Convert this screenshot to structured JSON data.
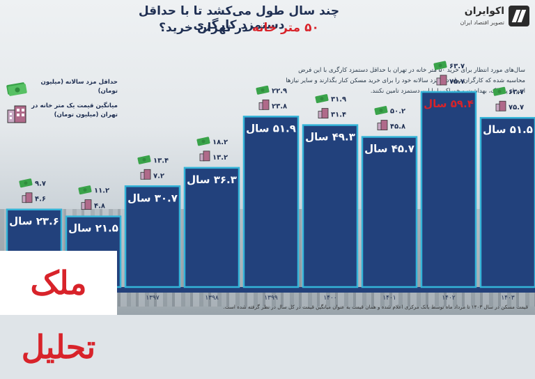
{
  "title_line1": "چند سال طول می‌کشد تا با حداقل دستمزد کارگری",
  "title_line2_highlight": "۵۰ متر خانه",
  "title_line2_rest": " در تهران خرید؟",
  "logo": {
    "name": "اکوایران",
    "tagline": "تصویر اقتصاد ایران"
  },
  "description": "سال‌های مورد انتظار برای خرید ۵۰ متر خانه در تهران با حداقل دستمزد کارگری با این فرض محاسبه شده که کارگران تمام دستمزد سالانه خود را برای خرید مسکن کنار بگذارند و سایر نیازها اعم از پوشاک، بهداشت و خوراک را با این دستمزد تامین نکنند.",
  "legend": {
    "wage": "حداقل مزد سالانه (میلیون تومان)",
    "price": "میانگین قیمت یک متر خانه در تهران (میلیون تومان)"
  },
  "footnote": "قیمت مسکن در سال ۱۴۰۳ تا مرداد ماه توسط بانک مرکزی اعلام شده و همان قیمت به عنوان میانگین قیمت در کل سال در نظر گرفته شده است.",
  "brand_text": "ملک تحلیل",
  "colors": {
    "bar": "#22417c",
    "bar_border": "#34b4d8",
    "highlight": "#d8232a",
    "money": "#3aa34a"
  },
  "chart_data": {
    "type": "bar",
    "categories": [
      "",
      "",
      "۱۳۹۷",
      "۱۳۹۸",
      "۱۳۹۹",
      "۱۴۰۰",
      "۱۴۰۱",
      "۱۴۰۲",
      "۱۴۰۳"
    ],
    "values": [
      23.6,
      21.5,
      30.7,
      36.3,
      51.9,
      49.3,
      45.7,
      59.4,
      51.5
    ],
    "value_labels": [
      "۲۳.۶ سال",
      "۲۱.۵ سال",
      "۳۰.۷ سال",
      "۳۶.۳ سال",
      "۵۱.۹ سال",
      "۴۹.۳ سال",
      "۴۵.۷ سال",
      "۵۹.۴ سال",
      "۵۱.۵ سال"
    ],
    "wage_labels": [
      "۹.۷",
      "۱۱.۲",
      "۱۳.۴",
      "۱۸.۲",
      "۲۲.۹",
      "۳۱.۹",
      "۵۰.۲",
      "۶۳.۷",
      "۶۳.۷"
    ],
    "price_labels": [
      "۴.۶",
      "۴.۸",
      "۷.۲",
      "۱۳.۲",
      "۲۳.۸",
      "۳۱.۴",
      "۴۵.۸",
      "۷۵.۷",
      "۷۵.۷"
    ],
    "highlight_index": 7,
    "ylim": [
      0,
      70
    ]
  }
}
